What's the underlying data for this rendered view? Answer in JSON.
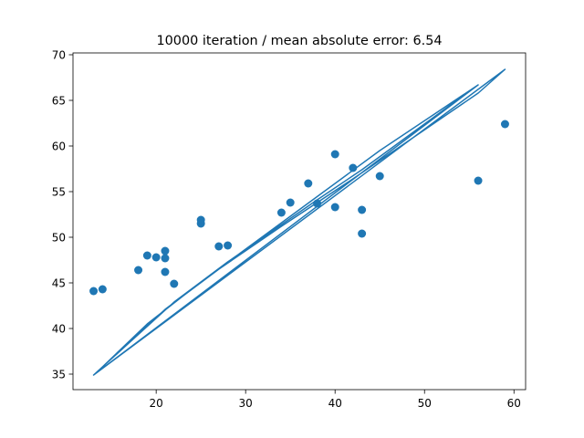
{
  "chart_data": {
    "type": "scatter",
    "title": "10000 iteration / mean absolute error: 6.54",
    "xlabel": "",
    "ylabel": "",
    "xlim": [
      10.7,
      61.3
    ],
    "ylim": [
      33.3,
      70.2
    ],
    "xticks": [
      20,
      30,
      40,
      50,
      60
    ],
    "yticks": [
      35,
      40,
      45,
      50,
      55,
      60,
      65,
      70
    ],
    "grid": false,
    "color": "#1f77b4",
    "series": [
      {
        "type": "scatter",
        "x": [
          13,
          14,
          18,
          19,
          20,
          21,
          21,
          21,
          22,
          25,
          25,
          27,
          28,
          34,
          35,
          37,
          38,
          40,
          40,
          42,
          43,
          43,
          45,
          56,
          59
        ],
        "y": [
          44.1,
          44.3,
          46.4,
          48.0,
          47.8,
          48.5,
          47.7,
          46.2,
          44.9,
          51.9,
          51.5,
          49.0,
          49.1,
          52.7,
          53.8,
          55.9,
          53.7,
          59.1,
          53.3,
          57.6,
          53.0,
          50.4,
          56.7,
          56.2,
          62.4
        ]
      },
      {
        "type": "line",
        "x": [
          13,
          21,
          27,
          34,
          42,
          56,
          59,
          13,
          14,
          19,
          25,
          35,
          45,
          56,
          13,
          22,
          28,
          38,
          43,
          55
        ],
        "y": [
          34.9,
          42.1,
          46.5,
          51.2,
          56.4,
          65.8,
          68.4,
          34.9,
          35.8,
          40.5,
          45.1,
          52.3,
          59.5,
          66.7,
          34.9,
          42.9,
          47.3,
          54.1,
          57.4,
          66.0
        ]
      }
    ]
  }
}
